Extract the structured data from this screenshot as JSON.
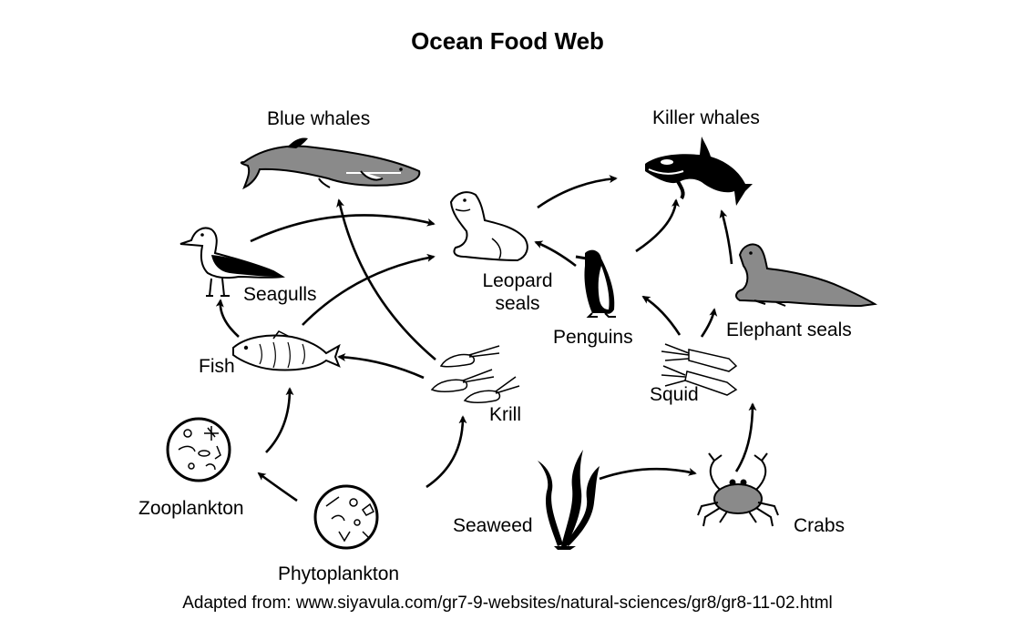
{
  "title": "Ocean Food Web",
  "organisms": {
    "blue_whales": "Blue whales",
    "killer_whales": "Killer whales",
    "seagulls": "Seagulls",
    "leopard_seals": "Leopard seals",
    "fish": "Fish",
    "penguins": "Penguins",
    "elephant_seals": "Elephant seals",
    "krill": "Krill",
    "squid": "Squid",
    "zooplankton": "Zooplankton",
    "phytoplankton": "Phytoplankton",
    "seaweed": "Seaweed",
    "crabs": "Crabs"
  },
  "source": "Adapted from: www.siyavula.com/gr7-9-websites/natural-sciences/gr8/gr8-11-02.html",
  "colors": {
    "ink": "#000000",
    "background": "#ffffff",
    "whale_grey": "#8a8a8a"
  },
  "arrows": [
    {
      "from": "phytoplankton",
      "to": "zooplankton"
    },
    {
      "from": "zooplankton",
      "to": "fish"
    },
    {
      "from": "phytoplankton",
      "to": "krill"
    },
    {
      "from": "krill",
      "to": "fish"
    },
    {
      "from": "krill",
      "to": "blue_whales"
    },
    {
      "from": "fish",
      "to": "seagulls"
    },
    {
      "from": "fish",
      "to": "leopard_seals"
    },
    {
      "from": "seagulls",
      "to": "leopard_seals"
    },
    {
      "from": "leopard_seals",
      "to": "killer_whales"
    },
    {
      "from": "penguins",
      "to": "leopard_seals"
    },
    {
      "from": "penguins",
      "to": "killer_whales"
    },
    {
      "from": "squid",
      "to": "penguins"
    },
    {
      "from": "squid",
      "to": "elephant_seals"
    },
    {
      "from": "elephant_seals",
      "to": "killer_whales"
    },
    {
      "from": "seaweed",
      "to": "crabs"
    },
    {
      "from": "crabs",
      "to": "squid"
    }
  ]
}
